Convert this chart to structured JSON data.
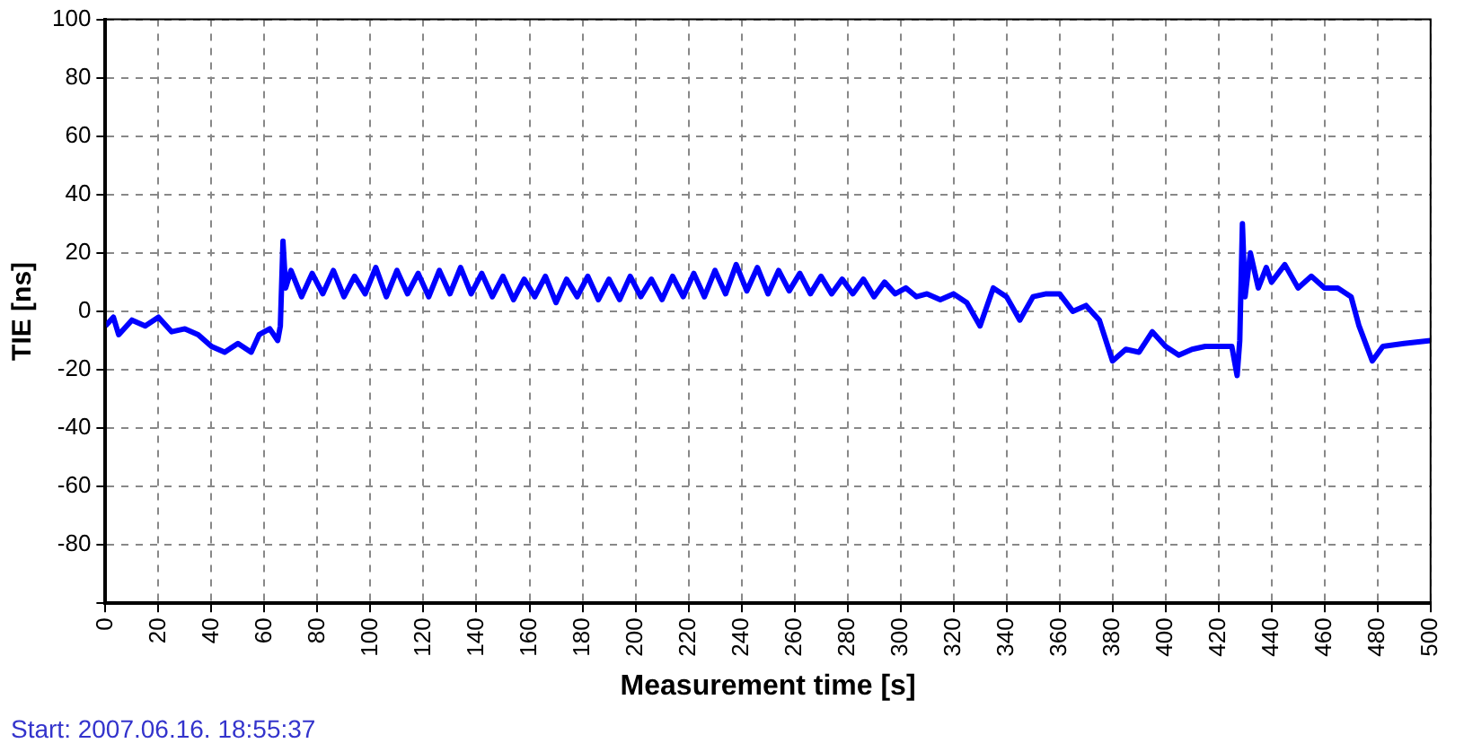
{
  "chart_data": {
    "type": "line",
    "xlabel": "Measurement time [s]",
    "ylabel": "TIE [ns]",
    "annotations": [
      "Start: 2007.06.16. 18:55:37"
    ],
    "xlim": [
      0,
      500
    ],
    "xticks": [
      0,
      20,
      40,
      60,
      80,
      100,
      120,
      140,
      160,
      180,
      200,
      220,
      240,
      260,
      280,
      300,
      320,
      340,
      360,
      380,
      400,
      420,
      440,
      460,
      480,
      500
    ],
    "ylim": [
      -100,
      100
    ],
    "yticks": [
      {
        "value": -100,
        "label": null
      },
      -80,
      -60,
      -40,
      -20,
      0,
      20,
      40,
      60,
      80,
      100
    ],
    "grid": true,
    "marker": "none",
    "legend": false,
    "series": [
      {
        "color": "#0000ff",
        "x": [
          0,
          3,
          5,
          10,
          15,
          20,
          25,
          30,
          35,
          40,
          45,
          50,
          55,
          58,
          62,
          65,
          66,
          67,
          68,
          70,
          74,
          78,
          82,
          86,
          90,
          94,
          98,
          102,
          106,
          110,
          114,
          118,
          122,
          126,
          130,
          134,
          138,
          142,
          146,
          150,
          154,
          158,
          162,
          166,
          170,
          174,
          178,
          182,
          186,
          190,
          194,
          198,
          202,
          206,
          210,
          214,
          218,
          222,
          226,
          230,
          234,
          238,
          242,
          246,
          250,
          254,
          258,
          262,
          266,
          270,
          274,
          278,
          282,
          286,
          290,
          294,
          298,
          302,
          306,
          310,
          315,
          320,
          325,
          330,
          335,
          340,
          345,
          350,
          355,
          360,
          365,
          370,
          375,
          380,
          385,
          390,
          395,
          400,
          405,
          410,
          415,
          420,
          425,
          427,
          428,
          429,
          430,
          432,
          435,
          438,
          440,
          445,
          450,
          455,
          460,
          465,
          470,
          473,
          478,
          482,
          490,
          500
        ],
        "values": [
          -5,
          -2,
          -8,
          -3,
          -5,
          -2,
          -7,
          -6,
          -8,
          -12,
          -14,
          -11,
          -14,
          -8,
          -6,
          -10,
          -5,
          24,
          8,
          14,
          5,
          13,
          6,
          14,
          5,
          12,
          6,
          15,
          5,
          14,
          6,
          13,
          5,
          14,
          6,
          15,
          6,
          13,
          5,
          12,
          4,
          11,
          5,
          12,
          3,
          11,
          5,
          12,
          4,
          11,
          4,
          12,
          5,
          11,
          4,
          12,
          5,
          13,
          5,
          14,
          6,
          16,
          7,
          15,
          6,
          14,
          7,
          13,
          6,
          12,
          6,
          11,
          6,
          11,
          5,
          10,
          6,
          8,
          5,
          6,
          4,
          6,
          3,
          -5,
          8,
          5,
          -3,
          5,
          6,
          6,
          0,
          2,
          -3,
          -17,
          -13,
          -14,
          -7,
          -12,
          -15,
          -13,
          -12,
          -12,
          -12,
          -22,
          -10,
          30,
          5,
          20,
          8,
          15,
          10,
          16,
          8,
          12,
          8,
          8,
          5,
          -5,
          -17,
          -12,
          -11,
          -10
        ]
      }
    ]
  }
}
